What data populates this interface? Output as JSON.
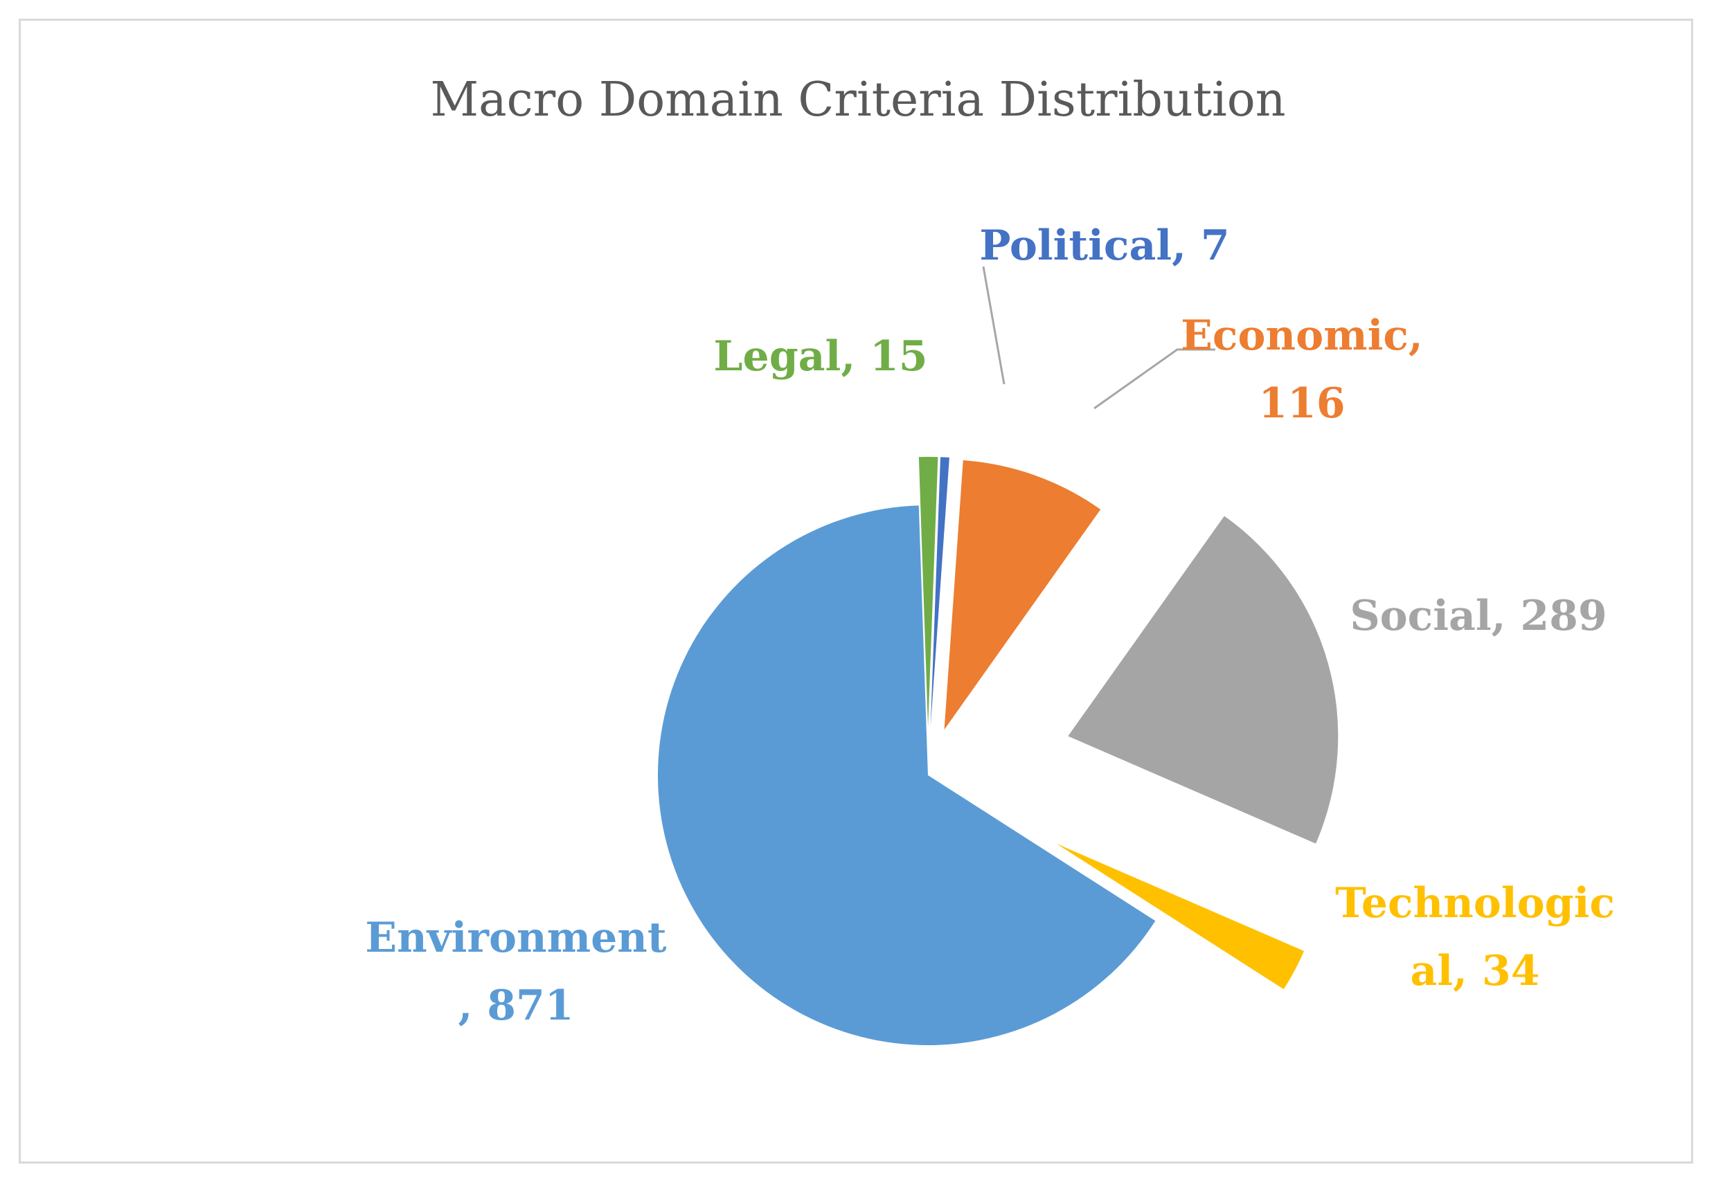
{
  "chart_data": {
    "type": "pie",
    "title": "Macro Domain Criteria Distribution",
    "slices": [
      {
        "name": "Economic",
        "value": 116,
        "label_lines": [
          "Economic,",
          "116"
        ],
        "color": "#ed7d31"
      },
      {
        "name": "Social",
        "value": 289,
        "label_lines": [
          "Social, 289"
        ],
        "color": "#a5a5a5"
      },
      {
        "name": "Technological",
        "value": 34,
        "label_lines": [
          "Technologic",
          "al, 34"
        ],
        "color": "#ffc000"
      },
      {
        "name": "Environment",
        "value": 871,
        "label_lines": [
          "Environment",
          ", 871"
        ],
        "color": "#5b9bd5"
      },
      {
        "name": "Legal",
        "value": 15,
        "label_lines": [
          "Legal, 15"
        ],
        "color": "#70ad47"
      },
      {
        "name": "Political",
        "value": 7,
        "label_lines": [
          "Political, 7"
        ],
        "color": "#4472c4"
      }
    ],
    "exploded": true,
    "data_labels": "category and value",
    "leader_lines": [
      "Economic",
      "Political"
    ]
  }
}
